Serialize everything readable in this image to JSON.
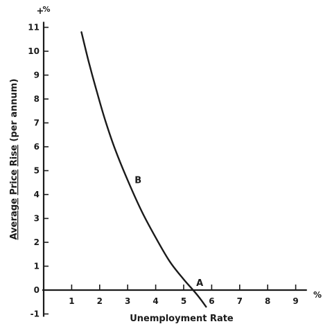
{
  "chart_data": {
    "type": "line",
    "xlabel": "Unemployment Rate",
    "ylabel_parts": {
      "word1": "Average",
      "word2": "Price",
      "word3": "Rise",
      "paren": "(per annum)"
    },
    "x_unit": "%",
    "y_unit": "%",
    "y_plus": "+",
    "x_ticks": [
      {
        "value": 1,
        "label": "1"
      },
      {
        "value": 2,
        "label": "2"
      },
      {
        "value": 3,
        "label": "3"
      },
      {
        "value": 4,
        "label": "4"
      },
      {
        "value": 5,
        "label": "5"
      },
      {
        "value": 6,
        "label": "6"
      },
      {
        "value": 7,
        "label": "7"
      },
      {
        "value": 8,
        "label": "8"
      },
      {
        "value": 9,
        "label": "9"
      }
    ],
    "y_ticks": [
      {
        "value": -1,
        "label": "-1"
      },
      {
        "value": 0,
        "label": "0"
      },
      {
        "value": 1,
        "label": "1"
      },
      {
        "value": 2,
        "label": "2"
      },
      {
        "value": 3,
        "label": "3"
      },
      {
        "value": 4,
        "label": "4"
      },
      {
        "value": 5,
        "label": "5"
      },
      {
        "value": 6,
        "label": "6"
      },
      {
        "value": 7,
        "label": "7"
      },
      {
        "value": 8,
        "label": "8"
      },
      {
        "value": 9,
        "label": "9"
      },
      {
        "value": 10,
        "label": "10"
      },
      {
        "value": 11,
        "label": "11"
      }
    ],
    "xlim": [
      0,
      9.4
    ],
    "ylim": [
      -1,
      11
    ],
    "series": [
      {
        "x": [
          1.35,
          1.6,
          1.9,
          2.2,
          2.55,
          3.0,
          3.5,
          4.0,
          4.5,
          5.0,
          5.3,
          5.55,
          5.8
        ],
        "y": [
          10.8,
          9.6,
          8.3,
          7.1,
          5.9,
          4.6,
          3.3,
          2.2,
          1.2,
          0.45,
          0.05,
          -0.3,
          -0.7
        ]
      }
    ],
    "points": [
      {
        "label": "B",
        "x": 3.0,
        "y": 4.6
      },
      {
        "label": "A",
        "x": 5.4,
        "y": 0.0
      }
    ],
    "colors": {
      "ink": "#1a1a1a",
      "background": "#ffffff"
    }
  }
}
